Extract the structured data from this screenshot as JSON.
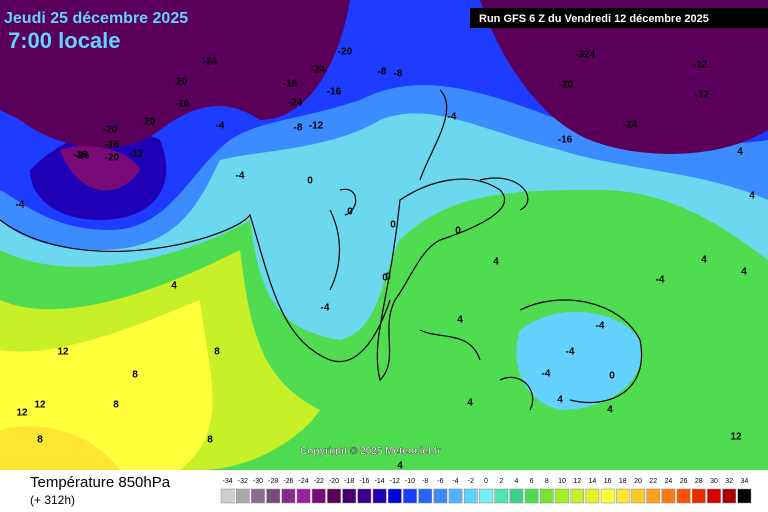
{
  "header": {
    "date": "Jeudi 25 décembre 2025",
    "time": "7:00 locale",
    "run": "Run GFS 6 Z du Vendredi 12 décembre 2025",
    "copyright": "Copyright © 2025 Meteociel.fr"
  },
  "footer": {
    "title": "Température 850hPa",
    "lead": "(+ 312h)"
  },
  "legend": {
    "values": [
      "-34",
      "-32",
      "-30",
      "-28",
      "-26",
      "-24",
      "-22",
      "-20",
      "-18",
      "-16",
      "-14",
      "-12",
      "-10",
      "-8",
      "-6",
      "-4",
      "-2",
      "0",
      "2",
      "4",
      "6",
      "8",
      "10",
      "12",
      "14",
      "16",
      "18",
      "20",
      "22",
      "24",
      "26",
      "28",
      "30",
      "32",
      "34"
    ],
    "colors": [
      "#cfcfcf",
      "#a8a8a8",
      "#8c6e8c",
      "#7a4a7a",
      "#8a2a8a",
      "#a01ea0",
      "#7a0a7a",
      "#5a005a",
      "#46006e",
      "#3a008c",
      "#2000b4",
      "#0000e6",
      "#1e3cff",
      "#2864ff",
      "#3c8cff",
      "#50b4ff",
      "#64d2ff",
      "#78f0f0",
      "#50e6b4",
      "#3cd28c",
      "#50dc50",
      "#78e632",
      "#a0f028",
      "#c8f028",
      "#e6f032",
      "#ffff3c",
      "#ffe632",
      "#ffc828",
      "#ffa01e",
      "#ff7814",
      "#ff500a",
      "#f02800",
      "#d20000",
      "#aa0000",
      "#000000"
    ]
  },
  "map_labels": [
    "-16",
    "-20",
    "-24",
    "-20",
    "-16",
    "-20",
    "-16",
    "-20",
    "-12",
    "-16",
    "-4",
    "-4",
    "0",
    "0",
    "-4",
    "-8",
    "-8",
    "-8",
    "-12",
    "-16",
    "-24",
    "-24",
    "-20",
    "-16",
    "-324",
    "-20",
    "-24",
    "-16",
    "-12",
    "-12",
    "-4",
    "0",
    "0",
    "4",
    "0",
    "4",
    "4",
    "4",
    "4",
    "4",
    "-4",
    "-4",
    "-4",
    "-4",
    "0",
    "0",
    "4",
    "4",
    "4",
    "8",
    "8",
    "8",
    "12",
    "12",
    "12",
    "8",
    "8",
    "12",
    "4",
    "-4",
    "4"
  ]
}
